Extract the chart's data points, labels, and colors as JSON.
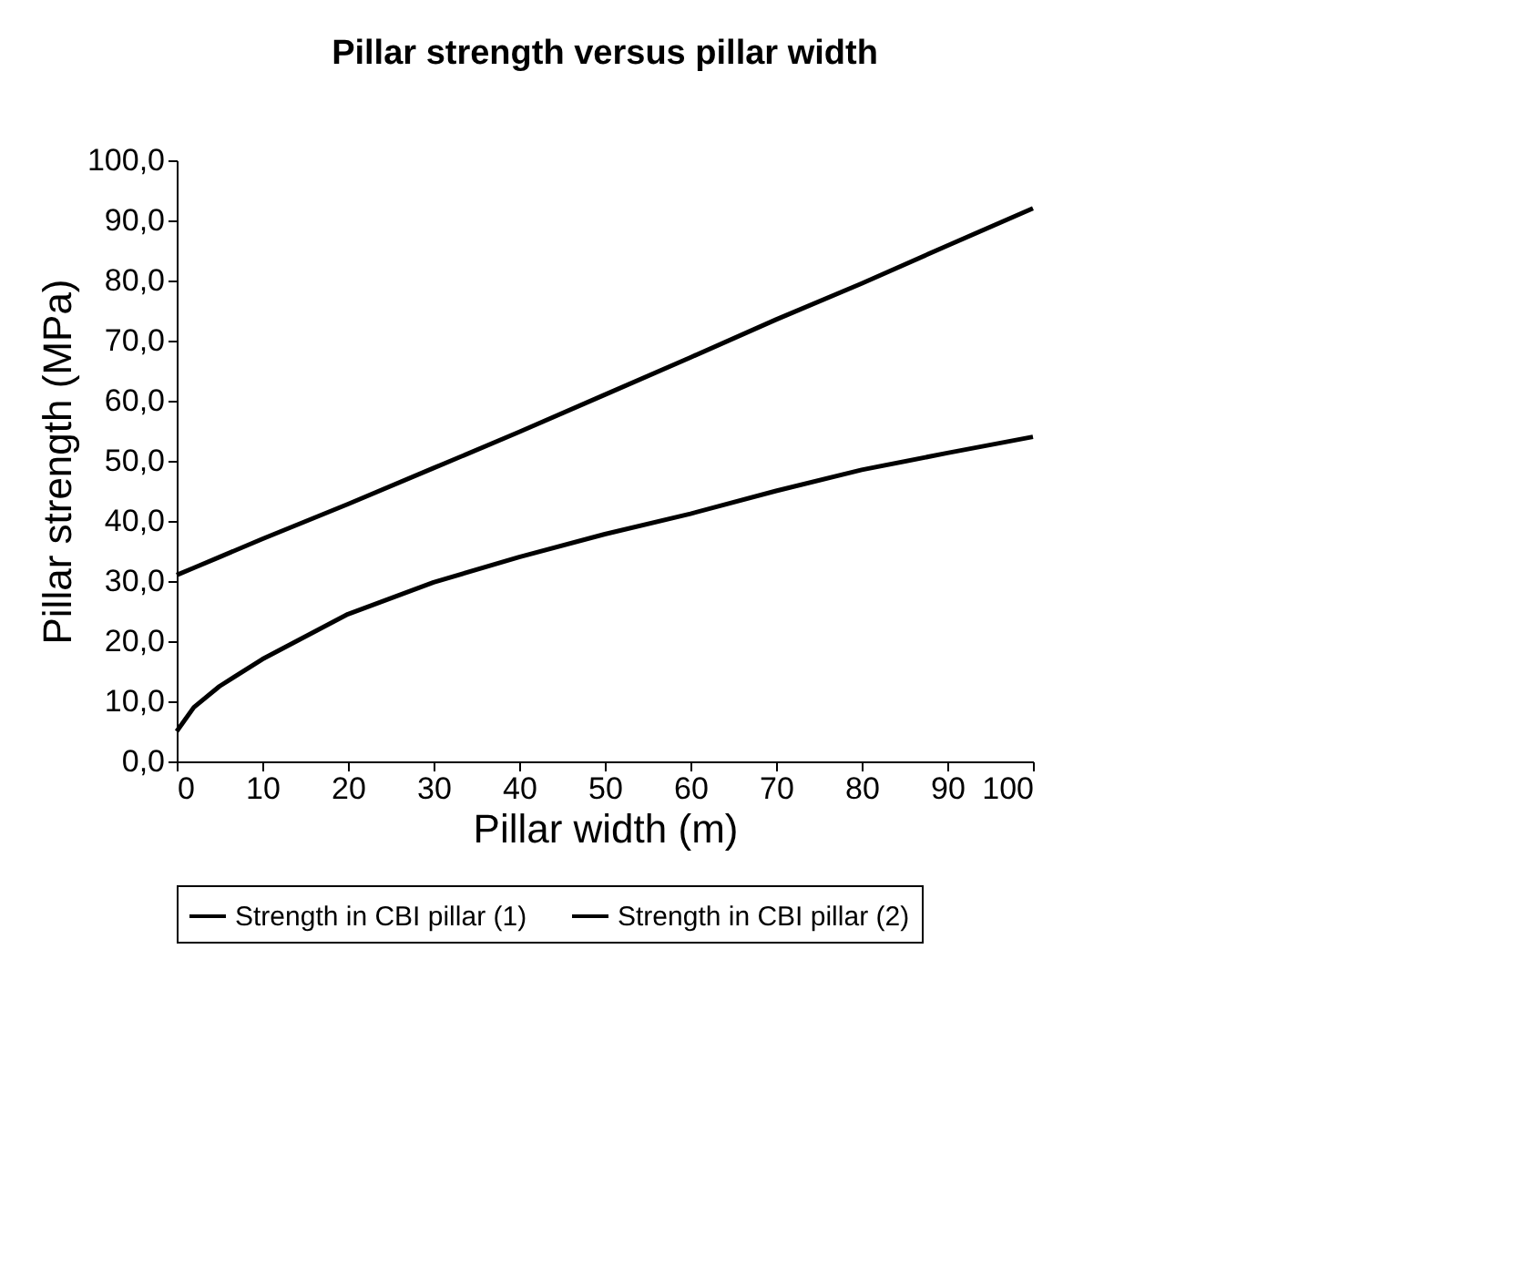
{
  "chart_data": {
    "type": "line",
    "title": "Pillar strength versus pillar width",
    "xlabel": "Pillar width (m)",
    "ylabel": "Pillar strength (MPa)",
    "x": [
      0,
      2,
      5,
      10,
      20,
      30,
      40,
      50,
      60,
      70,
      80,
      90,
      100
    ],
    "series": [
      {
        "name": "Strength in CBI pillar (1)",
        "color": "#000000",
        "values": [
          31,
          32.2,
          34,
          37,
          42.8,
          48.8,
          54.8,
          61,
          67.2,
          73.5,
          79.5,
          85.8,
          92
        ]
      },
      {
        "name": "Strength in CBI pillar (2)",
        "color": "#000000",
        "values": [
          5,
          9,
          12.5,
          17,
          24.5,
          29.8,
          34,
          37.8,
          41.2,
          45,
          48.5,
          51.3,
          54
        ]
      }
    ],
    "xlim": [
      0,
      100
    ],
    "xticks": [
      0,
      10,
      20,
      30,
      40,
      50,
      60,
      70,
      80,
      90,
      100
    ],
    "ylim": [
      0,
      100
    ],
    "yticks": [
      {
        "value": 0,
        "label": "0,0"
      },
      {
        "value": 10,
        "label": "10,0"
      },
      {
        "value": 20,
        "label": "20,0"
      },
      {
        "value": 30,
        "label": "30,0"
      },
      {
        "value": 40,
        "label": "40,0"
      },
      {
        "value": 50,
        "label": "50,0"
      },
      {
        "value": 60,
        "label": "60,0"
      },
      {
        "value": 70,
        "label": "70,0"
      },
      {
        "value": 80,
        "label": "80,0"
      },
      {
        "value": 90,
        "label": "90,0"
      },
      {
        "value": 100,
        "label": "100,0"
      }
    ],
    "grid": false,
    "legend": "bottom"
  }
}
